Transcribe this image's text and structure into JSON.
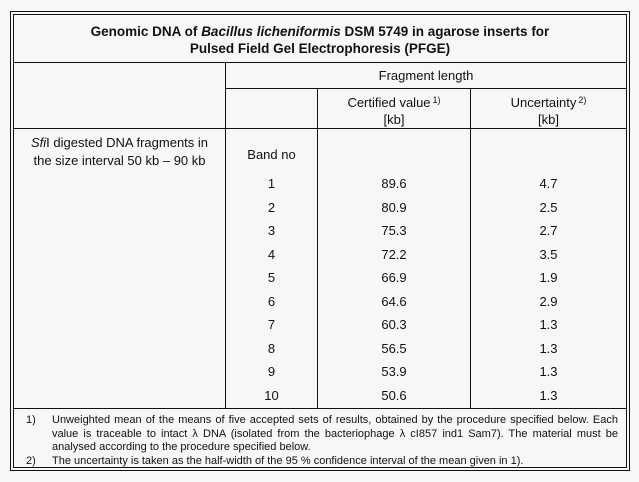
{
  "document": {
    "title": {
      "line1_prefix": "Genomic DNA of ",
      "line1_species": "Bacillus licheniformis",
      "line1_suffix": " DSM 5749 in agarose inserts for",
      "line2": "Pulsed Field Gel Electrophoresis (PFGE)"
    },
    "header": {
      "fragment_length": "Fragment length",
      "certified_value": {
        "label": "Certified value",
        "footnote_ref": "1)",
        "unit": "[kb]"
      },
      "uncertainty": {
        "label": "Uncertainty",
        "footnote_ref": "2)",
        "unit": "[kb]"
      }
    },
    "sample": {
      "description_italic": "Sfi",
      "description_line1_rest": "I digested DNA fragments in",
      "description_line2": "the size interval 50 kb – 90 kb",
      "band_column_header": "Band no"
    },
    "table": {
      "rows": [
        {
          "band": "1",
          "certified_kb": "89.6",
          "uncertainty_kb": "4.7"
        },
        {
          "band": "2",
          "certified_kb": "80.9",
          "uncertainty_kb": "2.5"
        },
        {
          "band": "3",
          "certified_kb": "75.3",
          "uncertainty_kb": "2.7"
        },
        {
          "band": "4",
          "certified_kb": "72.2",
          "uncertainty_kb": "3.5"
        },
        {
          "band": "5",
          "certified_kb": "66.9",
          "uncertainty_kb": "1.9"
        },
        {
          "band": "6",
          "certified_kb": "64.6",
          "uncertainty_kb": "2.9"
        },
        {
          "band": "7",
          "certified_kb": "60.3",
          "uncertainty_kb": "1.3"
        },
        {
          "band": "8",
          "certified_kb": "56.5",
          "uncertainty_kb": "1.3"
        },
        {
          "band": "9",
          "certified_kb": "53.9",
          "uncertainty_kb": "1.3"
        },
        {
          "band": "10",
          "certified_kb": "50.6",
          "uncertainty_kb": "1.3"
        }
      ]
    },
    "footnotes": {
      "fn1": {
        "label": "1)",
        "text": "Unweighted mean of the means of five accepted sets of results, obtained by the procedure specified below. Each value is traceable to intact λ DNA (isolated from the bacteriophage λ cI857 ind1 Sam7). The material must be analysed according to the procedure specified below."
      },
      "fn2": {
        "label": "2)",
        "text": "The uncertainty is taken as the half-width of the 95 % confidence interval of the mean given in 1)."
      }
    },
    "colors": {
      "page_background": "#f7f7f7",
      "border": "#111111",
      "text": "#111111"
    }
  }
}
